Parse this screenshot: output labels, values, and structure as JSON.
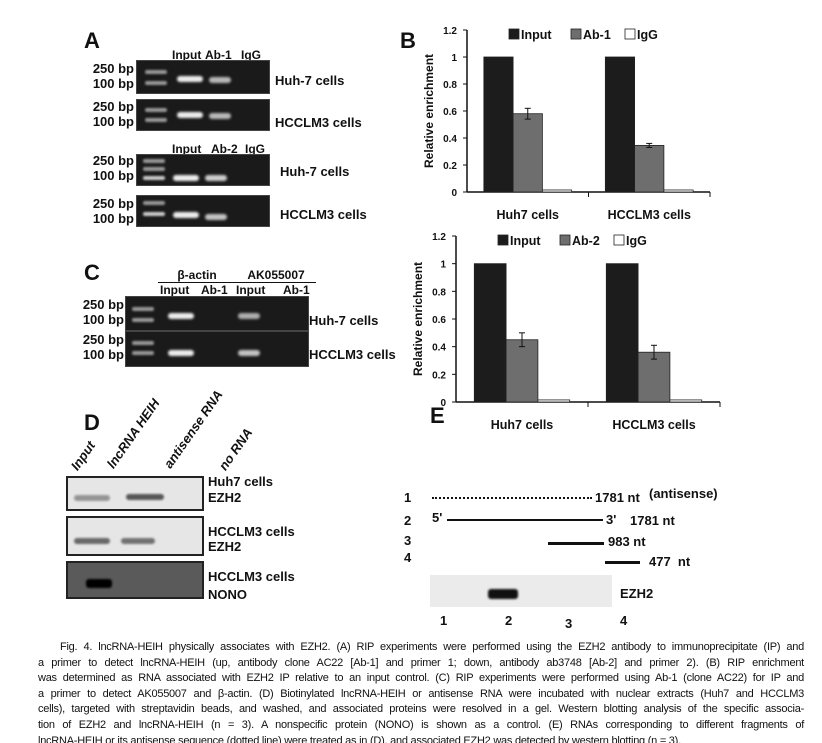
{
  "panelA": {
    "label": "A",
    "ladder": {
      "upper": "250 bp",
      "lower": "100 bp"
    },
    "lanes_top": [
      "Input",
      "Ab-1",
      "IgG"
    ],
    "lanes_bottom": [
      "Input",
      "Ab-2",
      "IgG"
    ],
    "cells": [
      "Huh-7 cells",
      "HCCLM3 cells"
    ]
  },
  "panelB": {
    "label": "B"
  },
  "panelC": {
    "label": "C",
    "groups": [
      "β-actin",
      "AK055007"
    ],
    "lanes": [
      "Input",
      "Ab-1",
      "Input",
      "Ab-1"
    ],
    "ladder": {
      "upper": "250 bp",
      "lower": "100 bp"
    },
    "cells": [
      "Huh-7 cells",
      "HCCLM3 cells"
    ]
  },
  "panelD": {
    "label": "D",
    "lanes": [
      "Input",
      "lncRNA HEIH",
      "antisense RNA",
      "no RNA"
    ],
    "blots": [
      {
        "cell": "Huh7 cells",
        "protein": "EZH2"
      },
      {
        "cell": "HCCLM3 cells",
        "protein": "EZH2"
      },
      {
        "cell": "HCCLM3 cells",
        "protein": "NONO"
      }
    ]
  },
  "panelE": {
    "label": "E",
    "fragments": [
      {
        "num": "1",
        "length": "1781 nt",
        "note": "(antisense)",
        "style": "dotted"
      },
      {
        "num": "2",
        "five": "5'",
        "three": "3'",
        "length": "1781 nt",
        "style": "solid"
      },
      {
        "num": "3",
        "length": "983 nt",
        "style": "solid"
      },
      {
        "num": "4",
        "length": "477  nt",
        "style": "solid"
      }
    ],
    "blot_label": "EZH2",
    "lane_numbers": [
      "1",
      "2",
      "3",
      "4"
    ]
  },
  "chart_data": [
    {
      "type": "bar",
      "title": "",
      "ylabel": "Relative enrichment",
      "xlabel": "",
      "ylim": [
        0,
        1.2
      ],
      "yticks": [
        "0",
        "0.2",
        "0.4",
        "0.6",
        "0.8",
        "1",
        "1.2"
      ],
      "categories": [
        "Huh7 cells",
        "HCCLM3 cells"
      ],
      "legend_position": "top",
      "series": [
        {
          "name": "Input",
          "values": [
            1,
            1
          ],
          "color": "#1c1c1c"
        },
        {
          "name": "Ab-1",
          "values": [
            0.58,
            0.345
          ],
          "errors": [
            0.04,
            0.015
          ],
          "color": "#6e6e6e"
        },
        {
          "name": "IgG",
          "values": [
            0.015,
            0.015
          ],
          "color": "#ffffff"
        }
      ]
    },
    {
      "type": "bar",
      "title": "",
      "ylabel": "Relative enrichment",
      "xlabel": "",
      "ylim": [
        0,
        1.2
      ],
      "yticks": [
        "0",
        "0.2",
        "0.4",
        "0.6",
        "0.8",
        "1",
        "1.2"
      ],
      "categories": [
        "Huh7 cells",
        "HCCLM3 cells"
      ],
      "legend_position": "top",
      "series": [
        {
          "name": "Input",
          "values": [
            1,
            1
          ],
          "color": "#1c1c1c"
        },
        {
          "name": "Ab-2",
          "values": [
            0.45,
            0.36
          ],
          "errors": [
            0.05,
            0.05
          ],
          "color": "#6e6e6e"
        },
        {
          "name": "IgG",
          "values": [
            0.015,
            0.015
          ],
          "color": "#ffffff"
        }
      ]
    }
  ],
  "caption": [
    "Fig. 4. lncRNA-HEIH physically associates with EZH2. (A) RIP experiments were performed using the EZH2 antibody to immunoprecipitate (IP) and",
    "a primer to detect lncRNA-HEIH (up, antibody clone AC22 [Ab-1] and primer 1; down, antibody ab3748 [Ab-2] and primer 2). (B) RIP enrichment",
    "was determined as RNA associated with EZH2 IP relative to an input control. (C) RIP experiments were performed using Ab-1 (clone AC22) for IP and",
    "a primer to detect AK055007 and β-actin. (D) Biotinylated lncRNA-HEIH or antisense RNA were incubated with nuclear extracts (Huh7 and HCCLM3",
    "cells), targeted with streptavidin beads, and washed, and associated proteins were resolved in a gel. Western blotting analysis of the specific associa-",
    "tion of EZH2 and lncRNA-HEIH (n = 3). A nonspecific protein (NONO) is shown as a control. (E) RNAs corresponding to different fragments of",
    "lncRNA-HEIH or its antisense sequence (dotted line) were treated as in (D), and associated EZH2 was detected by western blotting (n = 3)."
  ]
}
